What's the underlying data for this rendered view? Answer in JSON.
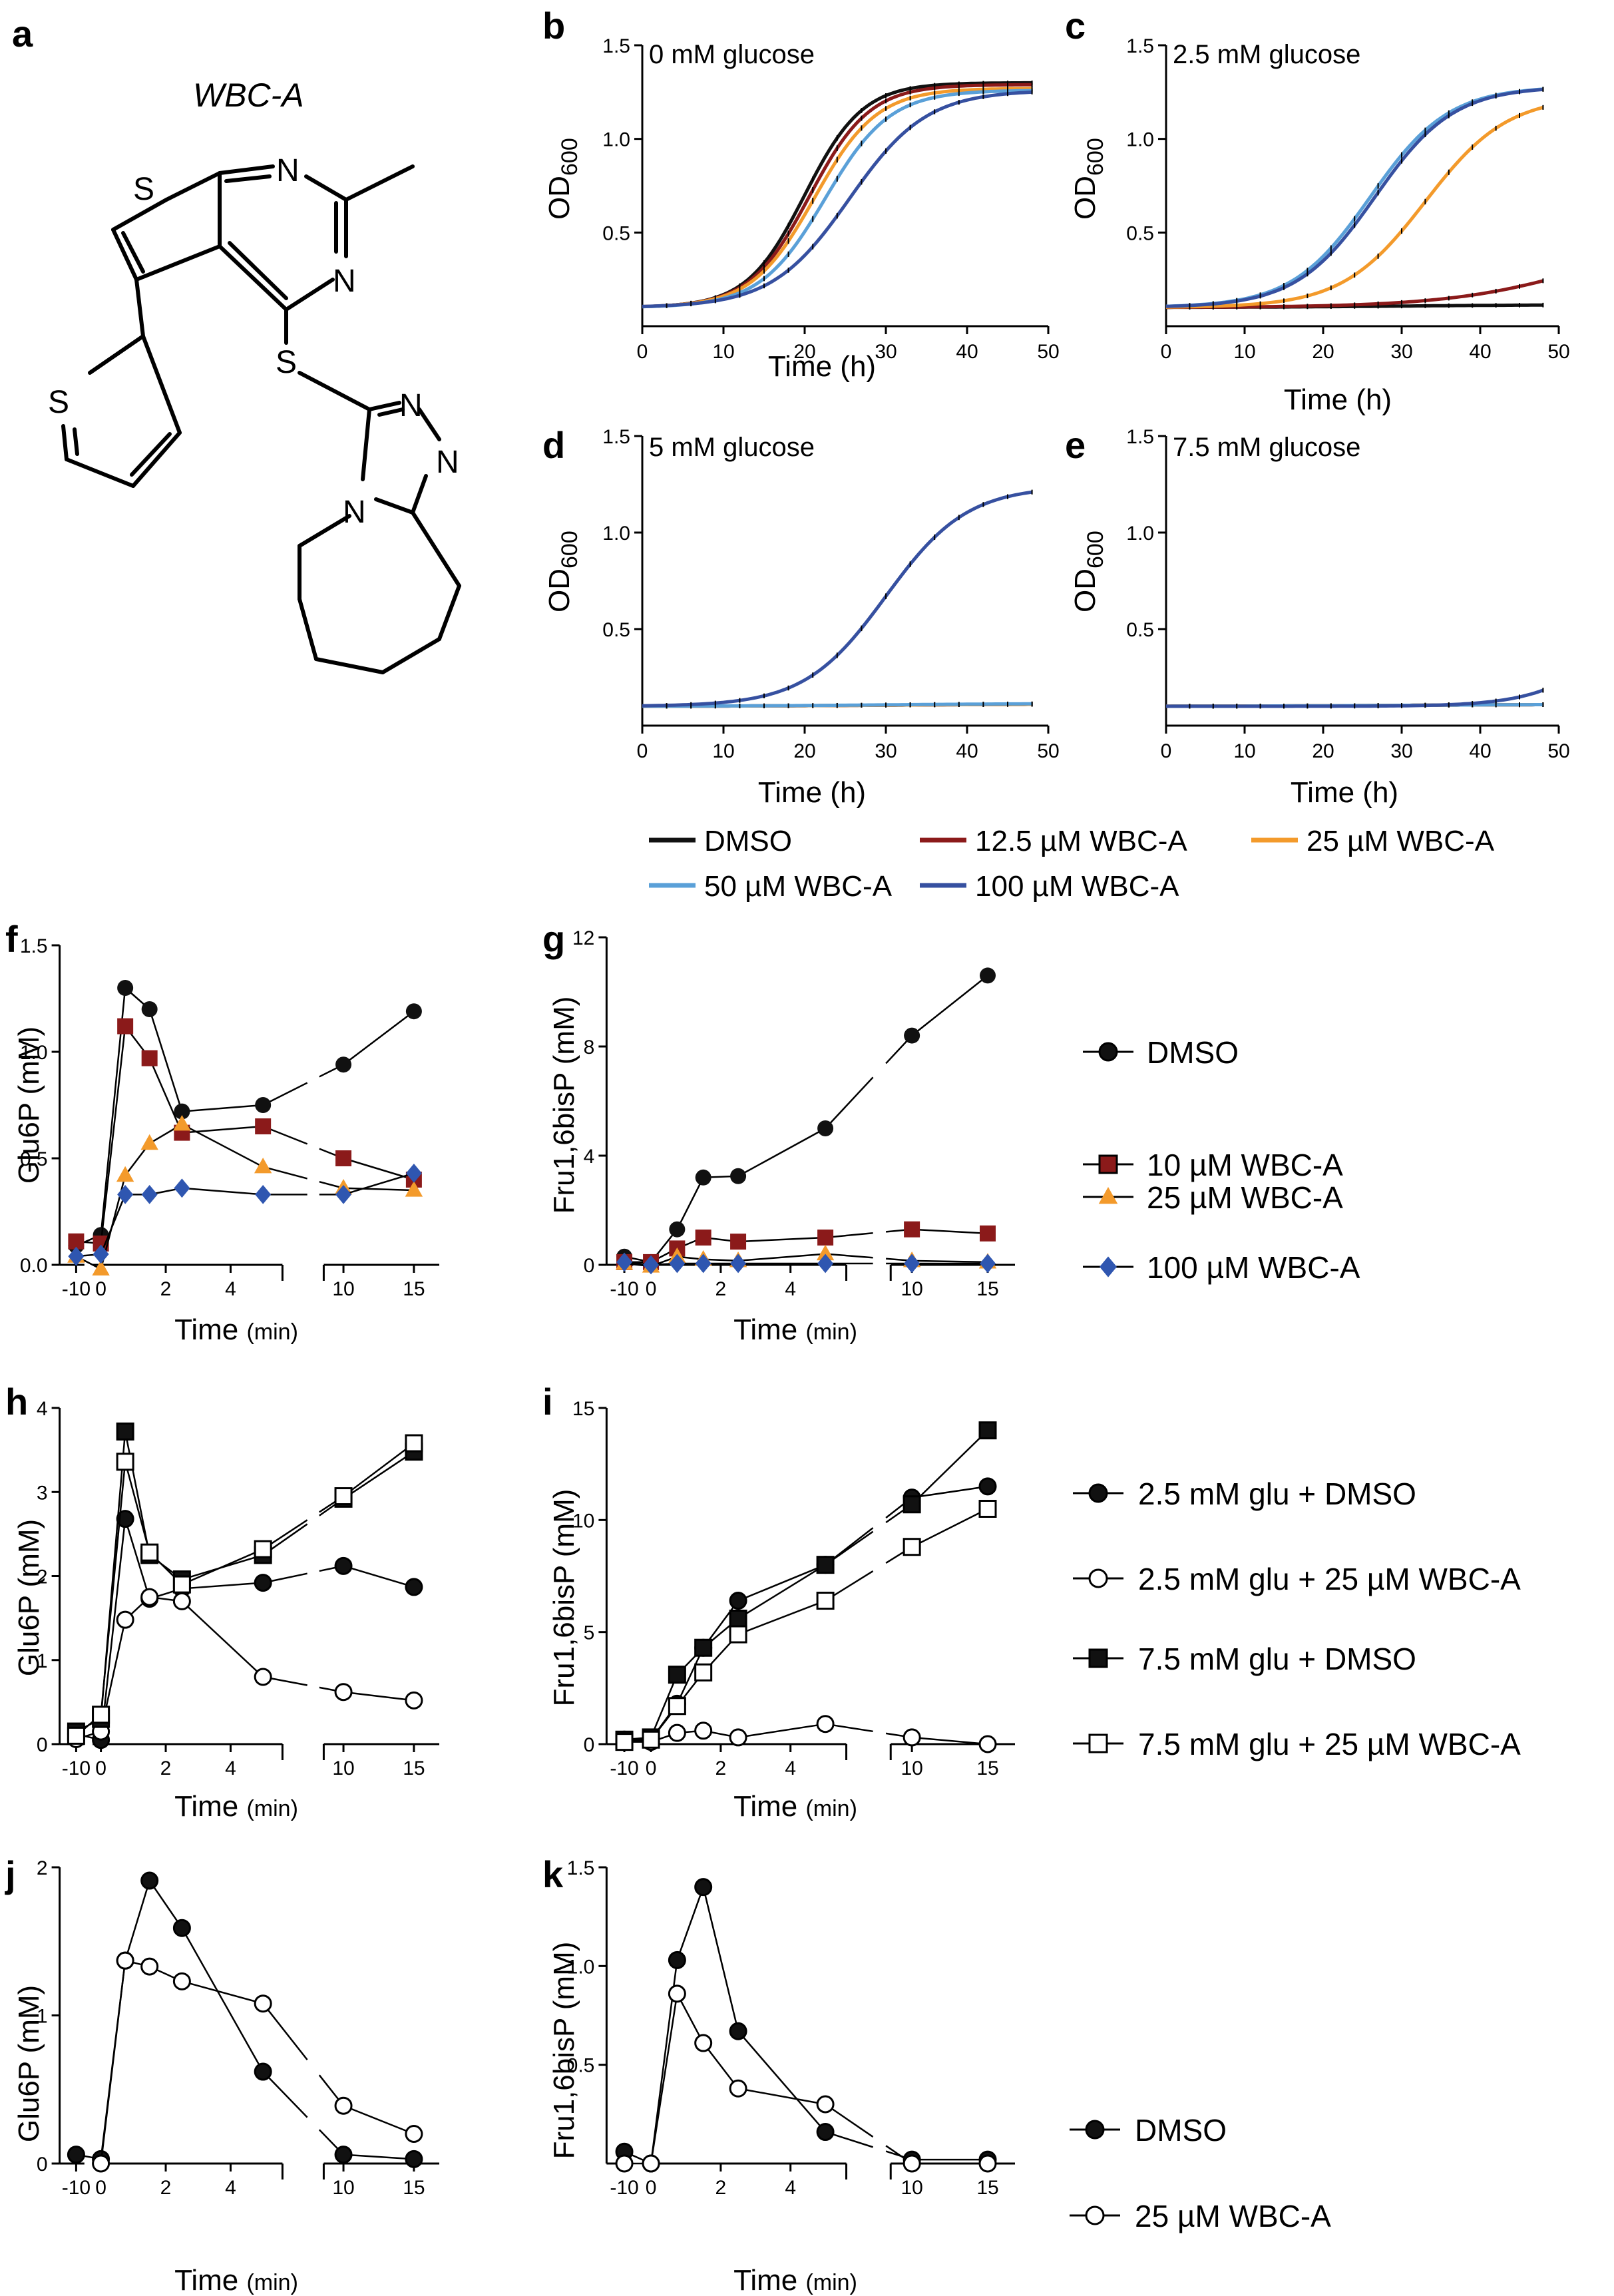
{
  "figure": {
    "panel_labels": [
      "a",
      "b",
      "c",
      "d",
      "e",
      "f",
      "g",
      "h",
      "i",
      "j",
      "k"
    ],
    "compound_name": "WBC-A",
    "atoms": [
      "S",
      "N",
      "N",
      "S",
      "S",
      "N",
      "N",
      "N"
    ],
    "growth_legend": [
      {
        "label": "DMSO",
        "color": "#111111"
      },
      {
        "label": "12.5 µM WBC-A",
        "color": "#8b1a1a"
      },
      {
        "label": "25 µM WBC-A",
        "color": "#f39a2b"
      },
      {
        "label": "50 µM WBC-A",
        "color": "#5aa0d8"
      },
      {
        "label": "100 µM WBC-A",
        "color": "#3650a0"
      }
    ],
    "legend_fg": [
      {
        "label": "DMSO",
        "marker": "circle",
        "color": "#111111"
      },
      {
        "label": "10 µM WBC-A",
        "marker": "square",
        "color": "#8b1a1a"
      },
      {
        "label": "25 µM WBC-A",
        "marker": "triangle",
        "color": "#f39a2b"
      },
      {
        "label": "100 µM WBC-A",
        "marker": "diamond",
        "color": "#2f56b0"
      }
    ],
    "legend_hi": [
      {
        "label": "2.5 mM glu + DMSO",
        "marker": "circle-filled"
      },
      {
        "label": "2.5 mM glu + 25 µM WBC-A",
        "marker": "circle-open"
      },
      {
        "label": "7.5 mM glu + DMSO",
        "marker": "square-filled"
      },
      {
        "label": "7.5 mM glu + 25 µM WBC-A",
        "marker": "square-open"
      }
    ],
    "legend_jk": [
      {
        "label": "DMSO",
        "marker": "circle-filled"
      },
      {
        "label": "25 µM WBC-A",
        "marker": "circle-open"
      }
    ]
  },
  "chart_data": [
    {
      "id": "b",
      "type": "line",
      "title": "0 mM glucose",
      "xlabel": "Time (h)",
      "ylabel": "OD",
      "ylabel_sub": "600",
      "xlim": [
        0,
        50
      ],
      "ylim": [
        0,
        1.5
      ],
      "xticks": [
        "0",
        "10",
        "20",
        "30",
        "40",
        "50"
      ],
      "yticks": [
        "0.5",
        "1.0",
        "1.5"
      ],
      "curves": [
        {
          "name": "DMSO",
          "color": "#111111",
          "min": 0.1,
          "max": 1.3,
          "mid": 20,
          "k": 0.28
        },
        {
          "name": "12.5 µM WBC-A",
          "color": "#8b1a1a",
          "min": 0.1,
          "max": 1.29,
          "mid": 20.6,
          "k": 0.27
        },
        {
          "name": "25 µM WBC-A",
          "color": "#f39a2b",
          "min": 0.1,
          "max": 1.27,
          "mid": 21.2,
          "k": 0.26
        },
        {
          "name": "50 µM WBC-A",
          "color": "#5aa0d8",
          "min": 0.1,
          "max": 1.26,
          "mid": 22.5,
          "k": 0.25
        },
        {
          "name": "100 µM WBC-A",
          "color": "#3650a0",
          "min": 0.1,
          "max": 1.26,
          "mid": 25.5,
          "k": 0.21
        }
      ]
    },
    {
      "id": "c",
      "type": "line",
      "title": "2.5 mM glucose",
      "xlabel": "Time (h)",
      "ylabel": "OD",
      "ylabel_sub": "600",
      "xlim": [
        0,
        50
      ],
      "ylim": [
        0,
        1.5
      ],
      "xticks": [
        "0",
        "10",
        "20",
        "30",
        "40",
        "50"
      ],
      "yticks": [
        "0.5",
        "1.0",
        "1.5"
      ],
      "curves": [
        {
          "name": "DMSO",
          "color": "#111111",
          "min": 0.1,
          "max": 0.115,
          "mid": 30,
          "k": 0.1
        },
        {
          "name": "12.5 µM WBC-A",
          "color": "#8b1a1a",
          "min": 0.1,
          "max": 0.55,
          "mid": 55,
          "k": 0.11
        },
        {
          "name": "25 µM WBC-A",
          "color": "#f39a2b",
          "min": 0.1,
          "max": 1.23,
          "mid": 33,
          "k": 0.19
        },
        {
          "name": "50 µM WBC-A",
          "color": "#5aa0d8",
          "min": 0.1,
          "max": 1.28,
          "mid": 26,
          "k": 0.2
        },
        {
          "name": "100 µM WBC-A",
          "color": "#3650a0",
          "min": 0.1,
          "max": 1.28,
          "mid": 26.6,
          "k": 0.2
        }
      ]
    },
    {
      "id": "d",
      "type": "line",
      "title": "5 mM glucose",
      "xlabel": "Time (h)",
      "ylabel": "OD",
      "ylabel_sub": "600",
      "xlim": [
        0,
        50
      ],
      "ylim": [
        0,
        1.5
      ],
      "xticks": [
        "0",
        "10",
        "20",
        "30",
        "40",
        "50"
      ],
      "yticks": [
        "0.5",
        "1.0",
        "1.5"
      ],
      "curves": [
        {
          "name": "DMSO",
          "color": "#111111",
          "min": 0.1,
          "max": 0.112,
          "mid": 30,
          "k": 0.1
        },
        {
          "name": "12.5 µM WBC-A",
          "color": "#8b1a1a",
          "min": 0.1,
          "max": 0.112,
          "mid": 30,
          "k": 0.1
        },
        {
          "name": "25 µM WBC-A",
          "color": "#f39a2b",
          "min": 0.1,
          "max": 0.112,
          "mid": 30,
          "k": 0.1
        },
        {
          "name": "50 µM WBC-A",
          "color": "#5aa0d8",
          "min": 0.1,
          "max": 0.115,
          "mid": 30,
          "k": 0.1
        },
        {
          "name": "100 µM WBC-A",
          "color": "#3650a0",
          "min": 0.1,
          "max": 1.24,
          "mid": 30,
          "k": 0.2
        }
      ]
    },
    {
      "id": "e",
      "type": "line",
      "title": "7.5 mM glucose",
      "xlabel": "Time (h)",
      "ylabel": "OD",
      "ylabel_sub": "600",
      "xlim": [
        0,
        50
      ],
      "ylim": [
        0,
        1.5
      ],
      "xticks": [
        "0",
        "10",
        "20",
        "30",
        "40",
        "50"
      ],
      "yticks": [
        "0.5",
        "1.0",
        "1.5"
      ],
      "curves": [
        {
          "name": "DMSO",
          "color": "#111111",
          "min": 0.1,
          "max": 0.11,
          "mid": 30,
          "k": 0.1
        },
        {
          "name": "12.5 µM WBC-A",
          "color": "#8b1a1a",
          "min": 0.1,
          "max": 0.11,
          "mid": 30,
          "k": 0.1
        },
        {
          "name": "25 µM WBC-A",
          "color": "#f39a2b",
          "min": 0.1,
          "max": 0.11,
          "mid": 30,
          "k": 0.1
        },
        {
          "name": "50 µM WBC-A",
          "color": "#5aa0d8",
          "min": 0.1,
          "max": 0.11,
          "mid": 30,
          "k": 0.1
        },
        {
          "name": "100 µM WBC-A",
          "color": "#3650a0",
          "min": 0.1,
          "max": 0.8,
          "mid": 58,
          "k": 0.2
        }
      ]
    },
    {
      "id": "f",
      "type": "line",
      "xlabel": "Time",
      "xlabel_unit": "(min)",
      "ylabel": "Glu6P (mM)",
      "ylim": [
        0,
        1.5
      ],
      "yticks": [
        "0.0",
        "0.5",
        "1.0",
        "1.5"
      ],
      "xticks_left": [
        "-10",
        "0",
        "2",
        "4"
      ],
      "xticks_right": [
        "10",
        "15"
      ],
      "series": [
        {
          "name": "DMSO",
          "marker": "circle",
          "color": "#111111",
          "x": [
            -10,
            0,
            0.75,
            1.5,
            2.5,
            5,
            10,
            15
          ],
          "y": [
            0.09,
            0.14,
            1.3,
            1.2,
            0.72,
            0.75,
            0.94,
            1.19
          ]
        },
        {
          "name": "10 µM WBC-A",
          "marker": "square",
          "color": "#8b1a1a",
          "x": [
            -10,
            0,
            0.75,
            1.5,
            2.5,
            5,
            10,
            15
          ],
          "y": [
            0.11,
            0.1,
            1.12,
            0.97,
            0.62,
            0.65,
            0.5,
            0.4
          ]
        },
        {
          "name": "25 µM WBC-A",
          "marker": "triangle",
          "color": "#f39a2b",
          "x": [
            -10,
            0,
            0.75,
            1.5,
            2.5,
            5,
            10,
            15
          ],
          "y": [
            0.04,
            -0.02,
            0.42,
            0.57,
            0.66,
            0.46,
            0.36,
            0.35
          ]
        },
        {
          "name": "100 µM WBC-A",
          "marker": "diamond",
          "color": "#2f56b0",
          "x": [
            -10,
            0,
            0.75,
            1.5,
            2.5,
            5,
            10,
            15
          ],
          "y": [
            0.04,
            0.05,
            0.33,
            0.33,
            0.36,
            0.33,
            0.33,
            0.43
          ]
        }
      ]
    },
    {
      "id": "g",
      "type": "line",
      "xlabel": "Time",
      "xlabel_unit": "(min)",
      "ylabel": "Fru1,6bisP (mM)",
      "ylim": [
        0,
        12
      ],
      "yticks": [
        "0",
        "4",
        "8",
        "12"
      ],
      "xticks_left": [
        "-10",
        "0",
        "2",
        "4"
      ],
      "xticks_right": [
        "10",
        "15"
      ],
      "series": [
        {
          "name": "DMSO",
          "marker": "circle",
          "color": "#111111",
          "x": [
            -10,
            0,
            0.75,
            1.5,
            2.5,
            5,
            10,
            15
          ],
          "y": [
            0.3,
            0.1,
            1.3,
            3.2,
            3.25,
            5.0,
            8.4,
            10.6
          ]
        },
        {
          "name": "10 µM WBC-A",
          "marker": "square",
          "color": "#8b1a1a",
          "x": [
            -10,
            0,
            0.75,
            1.5,
            2.5,
            5,
            10,
            15
          ],
          "y": [
            0.1,
            0.1,
            0.6,
            1.0,
            0.85,
            1.0,
            1.3,
            1.15
          ]
        },
        {
          "name": "25 µM WBC-A",
          "marker": "triangle",
          "color": "#f39a2b",
          "x": [
            -10,
            0,
            0.75,
            1.5,
            2.5,
            5,
            10,
            15
          ],
          "y": [
            0.05,
            -0.05,
            0.3,
            0.2,
            0.15,
            0.4,
            0.15,
            0.1
          ]
        },
        {
          "name": "100 µM WBC-A",
          "marker": "diamond",
          "color": "#2f56b0",
          "x": [
            -10,
            0,
            0.75,
            1.5,
            2.5,
            5,
            10,
            15
          ],
          "y": [
            0.1,
            0.0,
            0.05,
            0.05,
            0.05,
            0.05,
            0.05,
            0.05
          ]
        }
      ]
    },
    {
      "id": "h",
      "type": "line",
      "xlabel": "Time",
      "xlabel_unit": "(min)",
      "ylabel": "Glu6P (mM)",
      "ylim": [
        0,
        4
      ],
      "yticks": [
        "0",
        "1",
        "2",
        "3",
        "4"
      ],
      "xticks_left": [
        "-10",
        "0",
        "2",
        "4"
      ],
      "xticks_right": [
        "10",
        "15"
      ],
      "series": [
        {
          "name": "2.5 mM glu + DMSO",
          "marker": "circle",
          "fill": "#111111",
          "x": [
            -10,
            0,
            0.75,
            1.5,
            2.5,
            5,
            10,
            15
          ],
          "y": [
            0.12,
            0.05,
            2.68,
            1.73,
            1.85,
            1.92,
            2.12,
            1.87
          ]
        },
        {
          "name": "2.5 mM glu + 25 µM WBC-A",
          "marker": "circle",
          "fill": "#ffffff",
          "x": [
            -10,
            0,
            0.75,
            1.5,
            2.5,
            5,
            10,
            15
          ],
          "y": [
            0.06,
            0.15,
            1.48,
            1.75,
            1.7,
            0.8,
            0.62,
            0.52
          ]
        },
        {
          "name": "7.5 mM glu + DMSO",
          "marker": "square",
          "fill": "#111111",
          "x": [
            -10,
            0,
            0.75,
            1.5,
            2.5,
            5,
            10,
            15
          ],
          "y": [
            0.15,
            0.3,
            3.72,
            2.25,
            1.96,
            2.25,
            2.92,
            3.48
          ]
        },
        {
          "name": "7.5 mM glu + 25 µM WBC-A",
          "marker": "square",
          "fill": "#ffffff",
          "x": [
            -10,
            0,
            0.75,
            1.5,
            2.5,
            5,
            10,
            15
          ],
          "y": [
            0.1,
            0.35,
            3.36,
            2.28,
            1.9,
            2.32,
            2.95,
            3.58
          ]
        }
      ]
    },
    {
      "id": "i",
      "type": "line",
      "xlabel": "Time",
      "xlabel_unit": "(min)",
      "ylabel": "Fru1,6bisP (mM)",
      "ylim": [
        0,
        15
      ],
      "yticks": [
        "0",
        "5",
        "10",
        "15"
      ],
      "xticks_left": [
        "-10",
        "0",
        "2",
        "4"
      ],
      "xticks_right": [
        "10",
        "15"
      ],
      "series": [
        {
          "name": "2.5 mM glu + DMSO",
          "marker": "circle",
          "fill": "#111111",
          "x": [
            -10,
            0,
            0.75,
            1.5,
            2.5,
            5,
            10,
            15
          ],
          "y": [
            0.2,
            0.2,
            1.8,
            4.3,
            6.4,
            8.0,
            11.0,
            11.5
          ]
        },
        {
          "name": "2.5 mM glu + 25 µM WBC-A",
          "marker": "circle",
          "fill": "#ffffff",
          "x": [
            -10,
            0,
            0.75,
            1.5,
            2.5,
            5,
            10,
            15
          ],
          "y": [
            0.1,
            0.1,
            0.5,
            0.6,
            0.3,
            0.9,
            0.3,
            0.0
          ]
        },
        {
          "name": "7.5 mM glu + DMSO",
          "marker": "square",
          "fill": "#111111",
          "x": [
            -10,
            0,
            0.75,
            1.5,
            2.5,
            5,
            10,
            15
          ],
          "y": [
            0.2,
            0.3,
            3.1,
            4.3,
            5.6,
            8.0,
            10.7,
            14.0
          ]
        },
        {
          "name": "7.5 mM glu + 25 µM WBC-A",
          "marker": "square",
          "fill": "#ffffff",
          "x": [
            -10,
            0,
            0.75,
            1.5,
            2.5,
            5,
            10,
            15
          ],
          "y": [
            0.1,
            0.2,
            1.7,
            3.2,
            4.9,
            6.4,
            8.8,
            10.5
          ]
        }
      ]
    },
    {
      "id": "j",
      "type": "line",
      "xlabel": "Time",
      "xlabel_unit": "(min)",
      "ylabel": "Glu6P (mM)",
      "ylim": [
        0,
        2
      ],
      "yticks": [
        "0",
        "1",
        "2"
      ],
      "xticks_left": [
        "-10",
        "0",
        "2",
        "4"
      ],
      "xticks_right": [
        "10",
        "15"
      ],
      "series": [
        {
          "name": "DMSO",
          "marker": "circle",
          "fill": "#111111",
          "x": [
            -10,
            0,
            0.75,
            1.5,
            2.5,
            5,
            10,
            15
          ],
          "y": [
            0.06,
            0.03,
            1.37,
            1.91,
            1.59,
            0.62,
            0.06,
            0.03
          ]
        },
        {
          "name": "25 µM WBC-A",
          "marker": "circle",
          "fill": "#ffffff",
          "x": [
            0,
            0.75,
            1.5,
            2.5,
            5,
            10,
            15
          ],
          "y": [
            0.0,
            1.37,
            1.33,
            1.23,
            1.08,
            0.39,
            0.2
          ]
        }
      ]
    },
    {
      "id": "k",
      "type": "line",
      "xlabel": "Time",
      "xlabel_unit": "(min)",
      "ylabel": "Fru1,6bisP (mM)",
      "ylim": [
        0,
        1.5
      ],
      "yticks": [
        "0.5",
        "1.0",
        "1.5"
      ],
      "xticks_left": [
        "-10",
        "0",
        "2",
        "4"
      ],
      "xticks_right": [
        "10",
        "15"
      ],
      "series": [
        {
          "name": "DMSO",
          "marker": "circle",
          "fill": "#111111",
          "x": [
            -10,
            0,
            0.75,
            1.5,
            2.5,
            5,
            10,
            15
          ],
          "y": [
            0.06,
            0.0,
            1.03,
            1.4,
            0.67,
            0.16,
            0.02,
            0.02
          ]
        },
        {
          "name": "25 µM WBC-A",
          "marker": "circle",
          "fill": "#ffffff",
          "x": [
            -10,
            0,
            0.75,
            1.5,
            2.5,
            5,
            10,
            15
          ],
          "y": [
            0.0,
            0.0,
            0.86,
            0.61,
            0.38,
            0.3,
            0.0,
            0.0
          ]
        }
      ]
    }
  ]
}
